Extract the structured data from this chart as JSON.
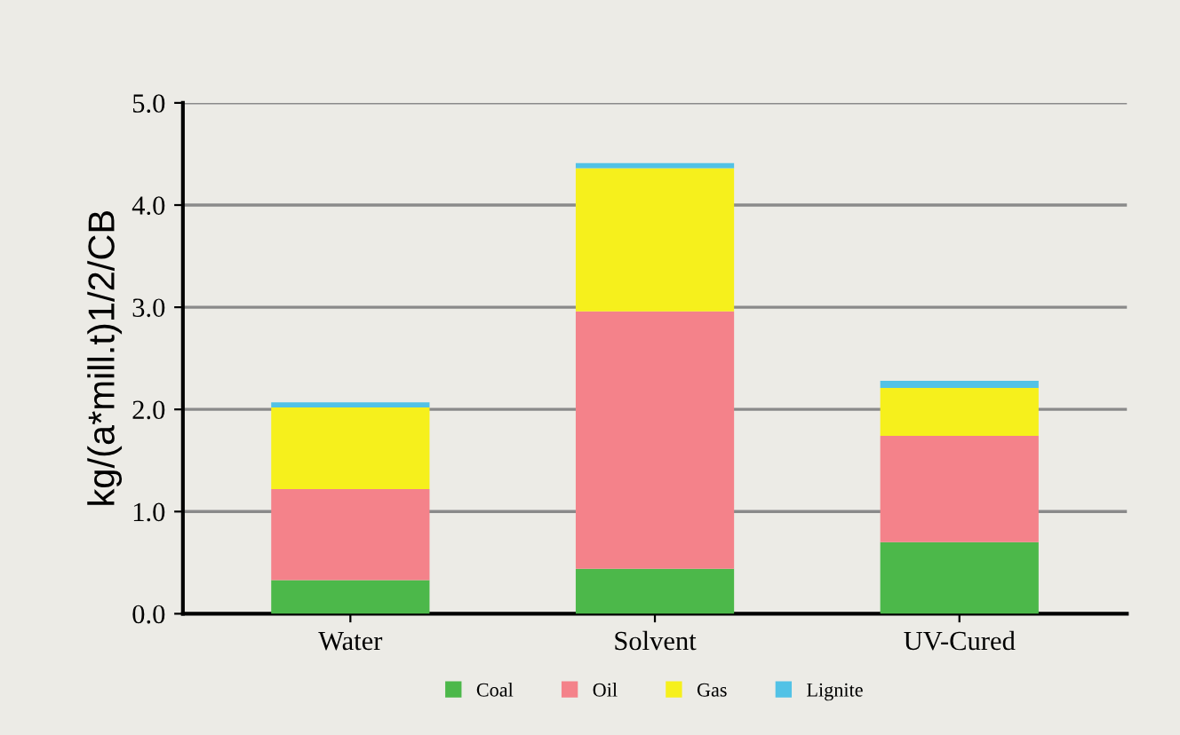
{
  "chart_data": {
    "type": "bar",
    "stacked": true,
    "ylabel": "kg/(a*mill.t)1/2/CB",
    "categories": [
      "Water",
      "Solvent",
      "UV-Cured"
    ],
    "series": [
      {
        "name": "Coal",
        "color": "#4cb84a",
        "values": [
          0.33,
          0.44,
          0.7
        ]
      },
      {
        "name": "Oil",
        "color": "#f4828a",
        "values": [
          0.89,
          2.52,
          1.04
        ]
      },
      {
        "name": "Gas",
        "color": "#f6f01c",
        "values": [
          0.8,
          1.4,
          0.47
        ]
      },
      {
        "name": "Lignite",
        "color": "#52c2e6",
        "values": [
          0.05,
          0.05,
          0.07
        ]
      }
    ],
    "ylim": [
      0,
      5.0
    ],
    "yticks": [
      {
        "value": 0,
        "label": "0.0"
      },
      {
        "value": 1,
        "label": "1.0"
      },
      {
        "value": 2,
        "label": "2.0"
      },
      {
        "value": 3,
        "label": "3.0"
      },
      {
        "value": 4,
        "label": "4.0"
      },
      {
        "value": 5,
        "label": "5.0"
      }
    ],
    "grid": "y",
    "legend": "bottom"
  }
}
